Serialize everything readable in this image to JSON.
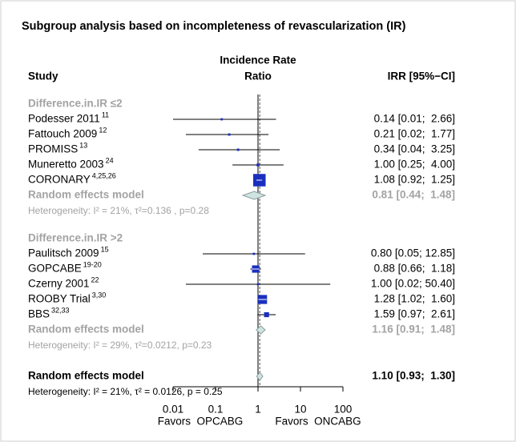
{
  "chart_data": {
    "type": "forest",
    "title": "Subgroup analysis based on incompleteness of revascularization (IR)",
    "study_header": "Study",
    "axis_title": [
      "Incidence Rate",
      "Ratio"
    ],
    "ci_header": "IRR [95%−CI]",
    "log_scale": true,
    "xlim": [
      0.01,
      100
    ],
    "xticks": [
      0.01,
      0.1,
      1,
      10,
      100
    ],
    "x_left_label": "Favors  OPCABG",
    "x_right_label": "Favors  ONCABG",
    "box_color": "#1b2fbf",
    "diamond_color": "#cfe4e2",
    "groups": [
      {
        "name": "Difference.in.IR ≤2",
        "studies": [
          {
            "name": "Podesser 2011",
            "ref": "11",
            "value": 0.14,
            "lower": 0.01,
            "upper": 2.66,
            "label": "0.14 [0.01;  2.66]"
          },
          {
            "name": "Fattouch 2009",
            "ref": "12",
            "value": 0.21,
            "lower": 0.02,
            "upper": 1.77,
            "label": "0.21 [0.02;  1.77]"
          },
          {
            "name": "PROMISS",
            "ref": "13",
            "value": 0.34,
            "lower": 0.04,
            "upper": 3.25,
            "label": "0.34 [0.04;  3.25]"
          },
          {
            "name": "Muneretto 2003",
            "ref": "24",
            "value": 1.0,
            "lower": 0.25,
            "upper": 4.0,
            "label": "1.00 [0.25;  4.00]"
          },
          {
            "name": "CORONARY",
            "ref": "4,25,26",
            "value": 1.08,
            "lower": 0.92,
            "upper": 1.25,
            "label": "1.08 [0.92;  1.25]"
          }
        ],
        "summary": {
          "name": "Random effects model",
          "value": 0.81,
          "lower": 0.44,
          "upper": 1.48,
          "label": "0.81 [0.44;  1.48]"
        },
        "heterogeneity": "Heterogeneity: I² = 21%, τ²=0.136 , p=0.28"
      },
      {
        "name": "Difference.in.IR >2",
        "studies": [
          {
            "name": "Paulitsch 2009",
            "ref": "15",
            "value": 0.8,
            "lower": 0.05,
            "upper": 12.85,
            "label": "0.80 [0.05; 12.85]"
          },
          {
            "name": "GOPCABE",
            "ref": "19-20",
            "value": 0.88,
            "lower": 0.66,
            "upper": 1.18,
            "label": "0.88 [0.66;  1.18]"
          },
          {
            "name": "Czerny 2001",
            "ref": "22",
            "value": 1.0,
            "lower": 0.02,
            "upper": 50.4,
            "label": "1.00 [0.02; 50.40]"
          },
          {
            "name": "ROOBY Trial",
            "ref": "3,30",
            "value": 1.28,
            "lower": 1.02,
            "upper": 1.6,
            "label": "1.28 [1.02;  1.60]"
          },
          {
            "name": "BBS",
            "ref": "32,33",
            "value": 1.59,
            "lower": 0.97,
            "upper": 2.61,
            "label": "1.59 [0.97;  2.61]"
          }
        ],
        "summary": {
          "name": "Random effects model",
          "value": 1.16,
          "lower": 0.91,
          "upper": 1.48,
          "label": "1.16 [0.91;  1.48]"
        },
        "heterogeneity": "Heterogeneity: I² = 29%, τ²=0.0212, p=0.23"
      }
    ],
    "overall": {
      "name": "Random effects model",
      "value": 1.1,
      "lower": 0.93,
      "upper": 1.3,
      "label": "1.10 [0.93;  1.30]",
      "heterogeneity": "Heterogeneity: I² = 21%, τ² = 0.0126, p = 0.25"
    }
  }
}
